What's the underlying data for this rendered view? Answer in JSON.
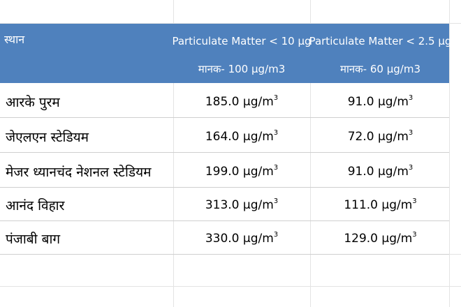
{
  "table": {
    "header": {
      "location_label": "स्थान",
      "pm10_label": "Particulate Matter < 10 µg",
      "pm10_standard": "मानक- 100 µg/m3",
      "pm25_label": "Particulate Matter < 2.5 µg",
      "pm25_standard": "मानक- 60 µg/m3"
    },
    "unit": "µg/m",
    "unit_sup": "3",
    "rows": [
      {
        "location": "आरके पुरम",
        "pm10": "185.0",
        "pm25": "91.0"
      },
      {
        "location": "जेएलएन स्टेडियम",
        "pm10": "164.0",
        "pm25": "72.0"
      },
      {
        "location": "मेजर ध्यानचंद नेशनल स्टेडियम",
        "pm10": "199.0",
        "pm25": "91.0"
      },
      {
        "location": "आनंद विहार",
        "pm10": "313.0",
        "pm25": "111.0"
      },
      {
        "location": "पंजाबी बाग",
        "pm10": "330.0",
        "pm25": "129.0"
      }
    ]
  },
  "colors": {
    "header_bg": "#4f81bd",
    "header_text": "#ffffff"
  }
}
